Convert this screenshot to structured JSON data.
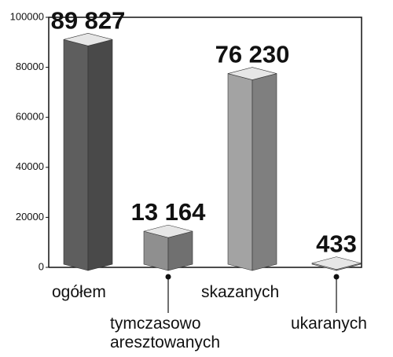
{
  "chart_data": {
    "type": "bar3d",
    "categories": [
      "ogółem",
      "tymczasowo aresztowanych",
      "skazanych",
      "ukaranych"
    ],
    "values": [
      89827,
      13164,
      76230,
      433
    ],
    "value_labels": [
      "89 827",
      "13 164",
      "76 230",
      "433"
    ],
    "colors": [
      "#5e5e5e",
      "#8f8f8f",
      "#a3a3a3",
      "#b5b5b5"
    ],
    "ylim": [
      0,
      100000
    ],
    "yticks": [
      0,
      20000,
      40000,
      60000,
      80000,
      100000
    ]
  }
}
